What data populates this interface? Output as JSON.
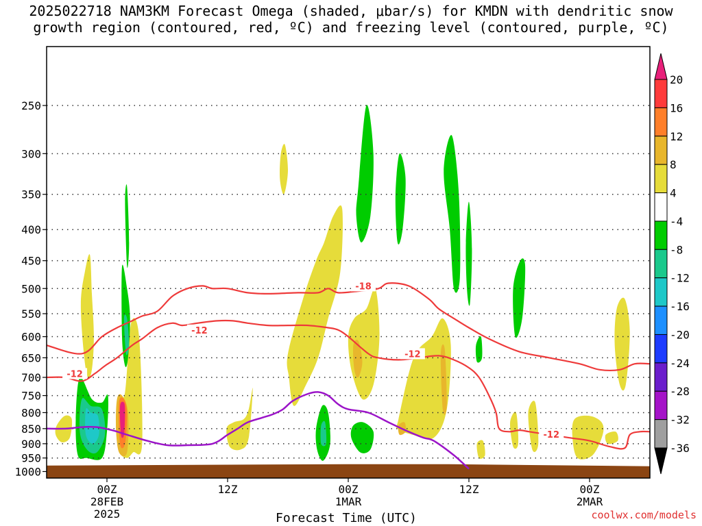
{
  "title_line1": "2025022718 NAM3KM Forecast Omega (shaded, μbar/s) for KMDN with dendritic snow",
  "title_line2": "growth region (contoured, red, ºC) and freezing level (contoured, purple, ºC)",
  "credit": "coolwx.com/models",
  "chart_data": {
    "type": "heatmap",
    "title": "2025022718 NAM3KM Forecast Omega (shaded, μbar/s) for KMDN with dendritic snow growth region (contoured, red, ºC) and freezing level (contoured, purple, ºC)",
    "xlabel": "Forecast Time (UTC)",
    "ylabel": "",
    "x_unit": "hours from 2025-02-27 18Z",
    "xlim": [
      0,
      60
    ],
    "ylim": [
      1025,
      200
    ],
    "y_scale": "log",
    "grid": true,
    "yticks": [
      250,
      300,
      350,
      400,
      450,
      500,
      550,
      600,
      650,
      700,
      750,
      800,
      850,
      900,
      950,
      1000
    ],
    "xticks": [
      {
        "x": 6,
        "label": [
          "00Z",
          "28FEB",
          "2025"
        ]
      },
      {
        "x": 18,
        "label": [
          "12Z"
        ]
      },
      {
        "x": 30,
        "label": [
          "00Z",
          "1MAR"
        ]
      },
      {
        "x": 42,
        "label": [
          "12Z"
        ]
      },
      {
        "x": 54,
        "label": [
          "00Z",
          "2MAR"
        ]
      }
    ],
    "colorbar": {
      "ticks": [
        "20",
        "16",
        "12",
        "8",
        "4",
        "-4",
        "-8",
        "-12",
        "-16",
        "-20",
        "-24",
        "-28",
        "-32",
        "-36"
      ],
      "colors": [
        "#e8207a",
        "#ff3b3b",
        "#ff7f2a",
        "#e8b62c",
        "#e6dc3a",
        "#ffffff",
        "#00cc00",
        "#1ac98c",
        "#1ec8c8",
        "#1e90ff",
        "#1e3cff",
        "#6b1ecc",
        "#a514c8",
        "#9f9f9f",
        "#000000"
      ]
    },
    "omega_regions": [
      {
        "value": 6,
        "color": "#e6dc3a",
        "x": [
          3.8,
          4.3,
          4.5,
          4.7,
          4.5,
          4.1,
          3.7,
          3.4
        ],
        "p": [
          470,
          440,
          510,
          600,
          680,
          700,
          640,
          530
        ]
      },
      {
        "value": 6,
        "color": "#e6dc3a",
        "x": [
          1.0,
          1.8,
          2.5,
          2.3,
          1.5,
          0.9
        ],
        "p": [
          840,
          810,
          820,
          880,
          895,
          870
        ]
      },
      {
        "value": 6,
        "color": "#e6dc3a",
        "x": [
          7.2,
          7.8,
          8.4,
          9.2,
          9.5,
          8.6,
          8.0,
          7.3,
          6.9
        ],
        "p": [
          760,
          740,
          570,
          600,
          900,
          930,
          950,
          930,
          850
        ]
      },
      {
        "value": 6,
        "color": "#e6dc3a",
        "x": [
          17.9,
          18.6,
          19.6,
          20.1,
          20.5,
          20.1,
          19.3,
          18.2
        ],
        "p": [
          850,
          830,
          820,
          790,
          730,
          880,
          920,
          910
        ]
      },
      {
        "value": 6,
        "color": "#e6dc3a",
        "x": [
          24.0,
          25.5,
          26.8,
          27.6,
          28.5,
          29.4,
          29.2,
          28.0,
          27.0,
          25.8,
          24.6,
          24.1
        ],
        "p": [
          640,
          520,
          450,
          420,
          380,
          370,
          470,
          560,
          650,
          720,
          780,
          700
        ]
      },
      {
        "value": 6,
        "color": "#e6dc3a",
        "x": [
          30.0,
          30.6,
          31.8,
          32.7,
          33.1,
          32.5,
          31.4,
          30.3
        ],
        "p": [
          600,
          560,
          540,
          500,
          600,
          720,
          760,
          680
        ]
      },
      {
        "value": 6,
        "color": "#e6dc3a",
        "x": [
          35.0,
          36.5,
          38.3,
          39.4,
          40.2,
          39.8,
          38.5,
          36.4,
          34.9
        ],
        "p": [
          820,
          650,
          600,
          560,
          620,
          790,
          880,
          870,
          850
        ]
      },
      {
        "value": 6,
        "color": "#e6dc3a",
        "x": [
          23.3,
          23.7,
          24.0,
          23.6,
          23.2
        ],
        "p": [
          300,
          290,
          320,
          350,
          330
        ]
      },
      {
        "value": 6,
        "color": "#e6dc3a",
        "x": [
          56.7,
          57.5,
          58.0,
          57.6,
          57.0,
          56.5
        ],
        "p": [
          540,
          520,
          590,
          720,
          720,
          620
        ]
      },
      {
        "value": 6,
        "color": "#e6dc3a",
        "x": [
          52.5,
          54.0,
          55.2,
          55.3,
          54.3,
          52.8,
          52.3
        ],
        "p": [
          820,
          810,
          830,
          870,
          940,
          950,
          880
        ]
      },
      {
        "value": 6,
        "color": "#e6dc3a",
        "x": [
          46.1,
          46.7,
          46.9,
          46.4
        ],
        "p": [
          830,
          800,
          900,
          910
        ]
      },
      {
        "value": 6,
        "color": "#e6dc3a",
        "x": [
          47.9,
          48.6,
          48.9,
          48.3
        ],
        "p": [
          800,
          770,
          900,
          920
        ]
      },
      {
        "value": 6,
        "color": "#e6dc3a",
        "x": [
          42.8,
          43.4,
          43.6,
          43.0
        ],
        "p": [
          900,
          890,
          940,
          950
        ]
      },
      {
        "value": 6,
        "color": "#e6dc3a",
        "x": [
          55.6,
          56.6,
          56.8,
          55.8
        ],
        "p": [
          870,
          860,
          890,
          900
        ]
      },
      {
        "value": 10,
        "color": "#e8b62c",
        "x": [
          7.0,
          7.5,
          8.1,
          8.0,
          7.2,
          6.9
        ],
        "p": [
          760,
          750,
          800,
          930,
          930,
          850
        ]
      },
      {
        "value": 10,
        "color": "#e8b62c",
        "x": [
          30.5,
          31.0,
          31.4,
          31.0,
          30.6
        ],
        "p": [
          620,
          610,
          660,
          700,
          680
        ]
      },
      {
        "value": 10,
        "color": "#e8b62c",
        "x": [
          39.2,
          39.6,
          39.8,
          39.4
        ],
        "p": [
          640,
          630,
          780,
          790
        ]
      },
      {
        "value": 10,
        "color": "#e8b62c",
        "x": [
          35.0,
          35.6,
          35.7,
          35.1
        ],
        "p": [
          840,
          830,
          860,
          870
        ]
      },
      {
        "value": 14,
        "color": "#ff7f2a",
        "x": [
          7.2,
          7.7,
          8.0,
          7.8,
          7.3
        ],
        "p": [
          770,
          760,
          800,
          900,
          900
        ]
      },
      {
        "value": 18,
        "color": "#e8207a",
        "x": [
          7.3,
          7.7,
          7.8,
          7.7,
          7.4
        ],
        "p": [
          780,
          770,
          800,
          870,
          870
        ]
      },
      {
        "value": -6,
        "color": "#00cc00",
        "x": [
          3.3,
          4.5,
          5.5,
          6.1,
          6.0,
          5.5,
          4.0,
          3.1,
          2.9
        ],
        "p": [
          700,
          760,
          770,
          750,
          860,
          950,
          950,
          940,
          820
        ]
      },
      {
        "value": -6,
        "color": "#00cc00",
        "x": [
          7.5,
          8.0,
          8.3,
          8.1,
          7.8,
          7.5
        ],
        "p": [
          460,
          500,
          560,
          650,
          670,
          600
        ]
      },
      {
        "value": -6,
        "color": "#00cc00",
        "x": [
          7.8,
          8.0,
          8.2,
          8.0
        ],
        "p": [
          360,
          340,
          420,
          460
        ]
      },
      {
        "value": -6,
        "color": "#00cc00",
        "x": [
          26.8,
          27.4,
          28.0,
          28.2,
          27.5,
          26.9
        ],
        "p": [
          850,
          780,
          800,
          900,
          960,
          920
        ]
      },
      {
        "value": -6,
        "color": "#00cc00",
        "x": [
          30.5,
          31.5,
          32.5,
          32.2,
          31.2,
          30.3
        ],
        "p": [
          840,
          830,
          860,
          920,
          930,
          880
        ]
      },
      {
        "value": -6,
        "color": "#00cc00",
        "x": [
          31.0,
          31.8,
          32.5,
          32.2,
          31.3,
          30.8
        ],
        "p": [
          340,
          250,
          300,
          380,
          420,
          380
        ]
      },
      {
        "value": -6,
        "color": "#00cc00",
        "x": [
          34.7,
          35.1,
          35.7,
          35.4,
          34.9
        ],
        "p": [
          350,
          300,
          330,
          400,
          420
        ]
      },
      {
        "value": -6,
        "color": "#00cc00",
        "x": [
          39.5,
          40.3,
          41.0,
          41.1,
          40.5,
          40.1
        ],
        "p": [
          320,
          280,
          350,
          480,
          500,
          400
        ]
      },
      {
        "value": -6,
        "color": "#00cc00",
        "x": [
          41.7,
          42.0,
          42.3,
          42.1,
          41.8
        ],
        "p": [
          420,
          360,
          430,
          530,
          500
        ]
      },
      {
        "value": -6,
        "color": "#00cc00",
        "x": [
          46.4,
          47.1,
          47.6,
          47.3,
          46.6
        ],
        "p": [
          500,
          450,
          460,
          560,
          600
        ]
      },
      {
        "value": -6,
        "color": "#00cc00",
        "x": [
          42.7,
          43.2,
          43.3,
          42.8
        ],
        "p": [
          620,
          600,
          650,
          660
        ]
      },
      {
        "value": -10,
        "color": "#1ac98c",
        "x": [
          3.5,
          4.4,
          5.5,
          5.8,
          5.0,
          4.0,
          3.3
        ],
        "p": [
          760,
          780,
          790,
          870,
          930,
          920,
          860
        ]
      },
      {
        "value": -10,
        "color": "#1ac98c",
        "x": [
          27.3,
          27.7,
          27.8,
          27.3
        ],
        "p": [
          840,
          830,
          900,
          900
        ]
      },
      {
        "value": -14,
        "color": "#1ec8c8",
        "x": [
          3.9,
          4.4,
          5.1,
          5.2,
          4.6,
          3.9
        ],
        "p": [
          790,
          800,
          810,
          870,
          900,
          870
        ]
      },
      {
        "value": -10,
        "color": "#1ac98c",
        "x": [
          7.7,
          8.0,
          8.2,
          7.9
        ],
        "p": [
          560,
          560,
          620,
          640
        ]
      }
    ],
    "dendritic_contours": [
      {
        "level": -18,
        "label": "-18",
        "label_at": [
          31.5,
          495
        ],
        "x": [
          0,
          3.5,
          5.5,
          7,
          8.5,
          9.5,
          11,
          12.5,
          14,
          15.5,
          16.5,
          18,
          20,
          22,
          25,
          27,
          28,
          29,
          31,
          33,
          34,
          36,
          38,
          39,
          40.5,
          42,
          44,
          47,
          50,
          53,
          55,
          57,
          58.5,
          60
        ],
        "p": [
          620,
          640,
          600,
          580,
          565,
          555,
          545,
          515,
          500,
          495,
          500,
          500,
          508,
          510,
          508,
          508,
          500,
          508,
          505,
          500,
          490,
          495,
          520,
          540,
          560,
          580,
          605,
          635,
          650,
          665,
          680,
          680,
          665,
          665
        ]
      },
      {
        "level": -12,
        "label": "-12",
        "label_at": [
          15.2,
          585
        ],
        "x": [
          0,
          1.8,
          3.5,
          4.8,
          5.8,
          7,
          8.5,
          9.5,
          11,
          12.5,
          13.5,
          15,
          17,
          18.5,
          20,
          22,
          24,
          26,
          28,
          29,
          30,
          32,
          33,
          35,
          37,
          39,
          40.5,
          42,
          43,
          44,
          44.7,
          45,
          46,
          47,
          48,
          50,
          52,
          54,
          56,
          57.5,
          58,
          59,
          60
        ],
        "p": [
          700,
          700,
          710,
          690,
          670,
          650,
          620,
          605,
          580,
          570,
          575,
          570,
          565,
          565,
          570,
          575,
          575,
          575,
          580,
          585,
          600,
          640,
          650,
          655,
          650,
          645,
          655,
          675,
          700,
          750,
          800,
          850,
          860,
          855,
          860,
          870,
          880,
          890,
          910,
          915,
          870,
          860,
          860
        ]
      }
    ],
    "freezing_level": {
      "level": 0,
      "x": [
        0,
        2,
        3.5,
        5,
        6.5,
        8,
        10,
        12,
        14,
        16.5,
        18,
        19,
        20,
        21.5,
        22.5,
        23.5,
        24.5,
        26,
        27,
        28,
        29,
        30,
        32,
        34,
        36,
        37.5,
        38.5,
        40.5,
        42
      ],
      "p": [
        850,
        850,
        845,
        845,
        855,
        870,
        890,
        905,
        905,
        900,
        870,
        850,
        830,
        815,
        805,
        790,
        765,
        745,
        740,
        750,
        775,
        790,
        800,
        830,
        860,
        880,
        890,
        940,
        990
      ]
    },
    "terrain_top_hpa": 975
  }
}
